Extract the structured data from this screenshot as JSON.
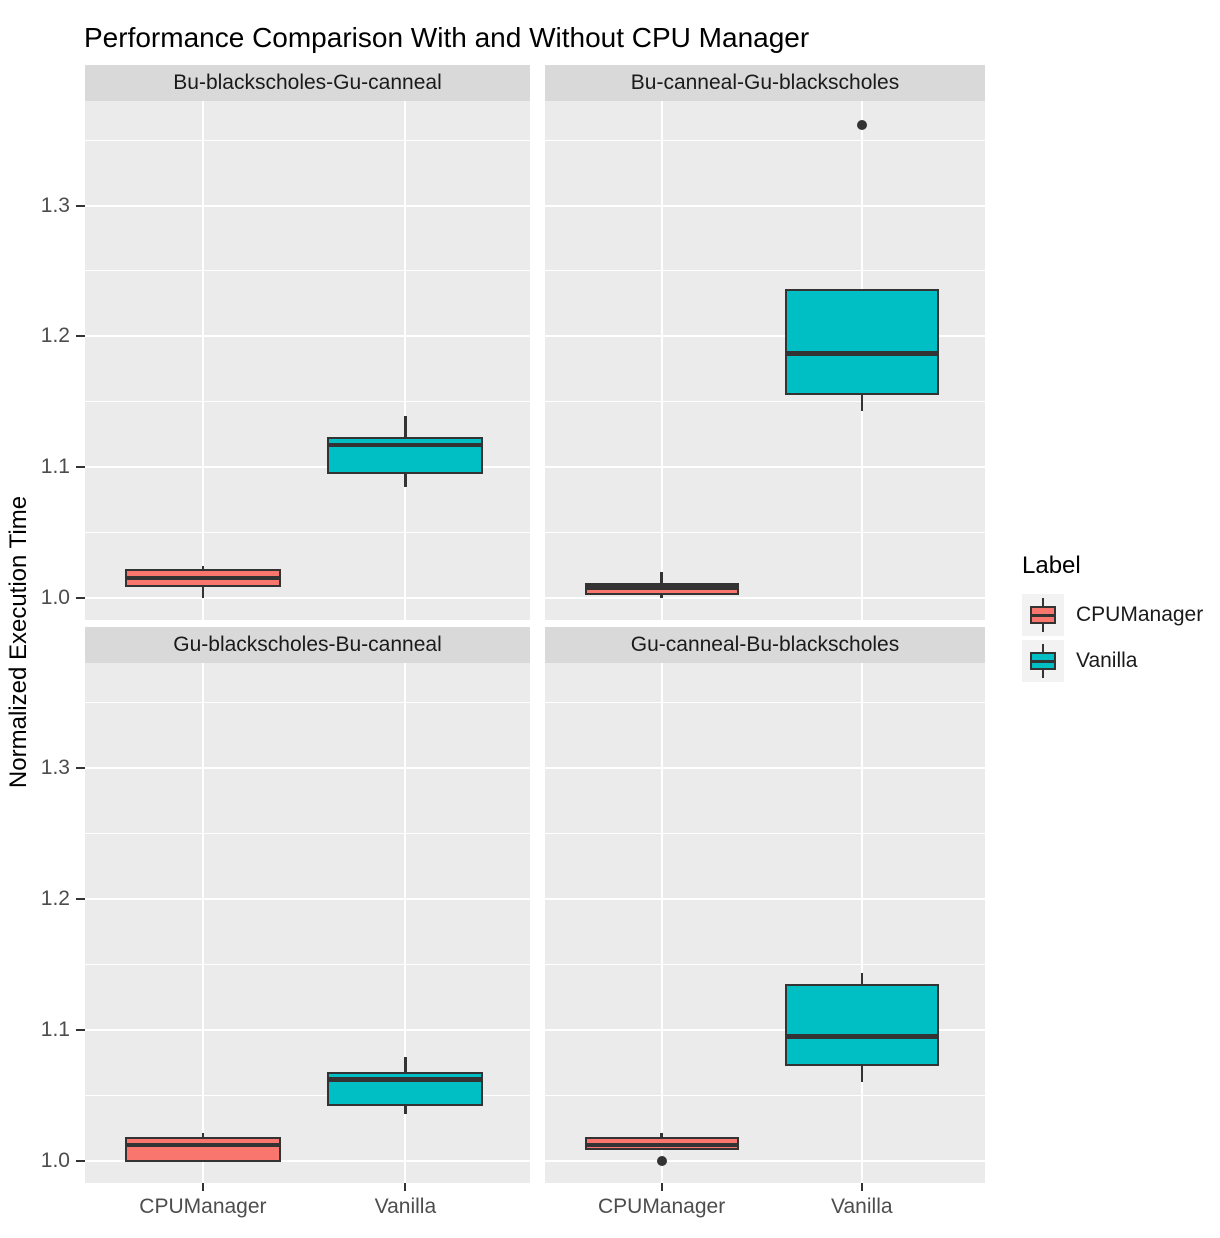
{
  "title": "Performance Comparison With and Without CPU Manager",
  "y_axis_label": "Normalized Execution Time",
  "legend": {
    "title": "Label",
    "items": [
      {
        "label": "CPUManager",
        "color": "#F8766D"
      },
      {
        "label": "Vanilla",
        "color": "#00BFC4"
      }
    ]
  },
  "styles": {
    "panel_bg": "#EBEBEB",
    "strip_bg": "#D9D9D9",
    "gridline": "#FFFFFF",
    "box_stroke": "#333333",
    "tick_label_color": "#4D4D4D",
    "text_color": "#1A1A1A",
    "legend_key_bg": "#F2F2F2",
    "cpumanager_color": "#F8766D",
    "vanilla_color": "#00BFC4"
  },
  "chart_data": {
    "type": "boxplot",
    "title": "Performance Comparison With and Without CPU Manager",
    "xlabel": "",
    "ylabel": "Normalized Execution Time",
    "categories": [
      "CPUManager",
      "Vanilla"
    ],
    "y_major_ticks": [
      1.0,
      1.1,
      1.2,
      1.3
    ],
    "y_minor_gridlines": [
      1.05,
      1.15,
      1.25,
      1.35
    ],
    "ylim": [
      0.983,
      1.38
    ],
    "grid": "on",
    "legend_position": "right",
    "series": [
      {
        "name": "CPUManager",
        "color": "#F8766D"
      },
      {
        "name": "Vanilla",
        "color": "#00BFC4"
      }
    ],
    "facets": [
      {
        "label": "Bu-blackscholes-Gu-canneal",
        "boxes": [
          {
            "series": "CPUManager",
            "whisker_low": 1.0,
            "q1": 1.008,
            "median": 1.015,
            "q3": 1.022,
            "whisker_high": 1.024,
            "outliers": []
          },
          {
            "series": "Vanilla",
            "whisker_low": 1.085,
            "q1": 1.095,
            "median": 1.117,
            "q3": 1.123,
            "whisker_high": 1.139,
            "outliers": []
          }
        ]
      },
      {
        "label": "Bu-canneal-Gu-blackscholes",
        "boxes": [
          {
            "series": "CPUManager",
            "whisker_low": 1.0,
            "q1": 1.002,
            "median": 1.008,
            "q3": 1.011,
            "whisker_high": 1.02,
            "outliers": []
          },
          {
            "series": "Vanilla",
            "whisker_low": 1.143,
            "q1": 1.155,
            "median": 1.187,
            "q3": 1.236,
            "whisker_high": 1.236,
            "outliers": [
              1.362
            ]
          }
        ]
      },
      {
        "label": "Gu-blackscholes-Bu-canneal",
        "boxes": [
          {
            "series": "CPUManager",
            "whisker_low": 0.999,
            "q1": 0.999,
            "median": 1.012,
            "q3": 1.018,
            "whisker_high": 1.021,
            "outliers": []
          },
          {
            "series": "Vanilla",
            "whisker_low": 1.036,
            "q1": 1.042,
            "median": 1.062,
            "q3": 1.068,
            "whisker_high": 1.079,
            "outliers": []
          }
        ]
      },
      {
        "label": "Gu-canneal-Bu-blackscholes",
        "boxes": [
          {
            "series": "CPUManager",
            "whisker_low": 1.008,
            "q1": 1.008,
            "median": 1.012,
            "q3": 1.018,
            "whisker_high": 1.021,
            "outliers": [
              1.0
            ]
          },
          {
            "series": "Vanilla",
            "whisker_low": 1.06,
            "q1": 1.072,
            "median": 1.095,
            "q3": 1.135,
            "whisker_high": 1.143,
            "outliers": []
          }
        ]
      }
    ]
  }
}
